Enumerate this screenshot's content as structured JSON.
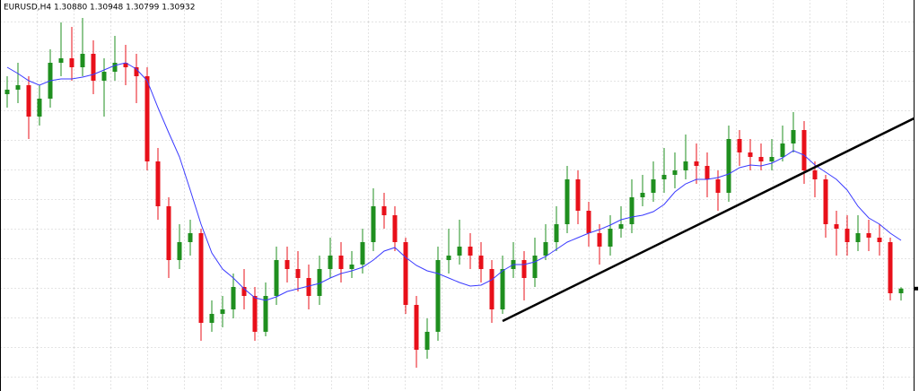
{
  "chart_data": {
    "type": "candlestick",
    "title": "EURUSD,H4  1.30880 1.30948 1.30799 1.30932",
    "ylim": [
      1.2979,
      1.3415
    ],
    "bull_color": "#1f8f1f",
    "bear_color": "#e8101a",
    "grid": true,
    "open": [
      1.331,
      1.3315,
      1.332,
      1.3285,
      1.3305,
      1.3345,
      1.335,
      1.334,
      1.3355,
      1.3325,
      1.3335,
      1.3345,
      1.334,
      1.333,
      1.3235,
      1.3185,
      1.3125,
      1.3145,
      1.3155,
      1.3055,
      1.3065,
      1.307,
      1.3095,
      1.3085,
      1.3045,
      1.3085,
      1.3125,
      1.3115,
      1.3105,
      1.3085,
      1.3115,
      1.313,
      1.3115,
      1.312,
      1.3145,
      1.3185,
      1.3175,
      1.3145,
      1.3075,
      1.3025,
      1.3045,
      1.3125,
      1.313,
      1.314,
      1.313,
      1.3115,
      1.307,
      1.3115,
      1.3125,
      1.3105,
      1.313,
      1.3145,
      1.3165,
      1.3215,
      1.318,
      1.3155,
      1.314,
      1.316,
      1.3165,
      1.3195,
      1.32,
      1.3215,
      1.322,
      1.3225,
      1.3235,
      1.323,
      1.3215,
      1.32,
      1.326,
      1.3245,
      1.324,
      1.3235,
      1.324,
      1.3255,
      1.327,
      1.3225,
      1.3215,
      1.3165,
      1.316,
      1.3145,
      1.3155,
      1.315,
      1.3145,
      1.3088
    ],
    "high": [
      1.333,
      1.3345,
      1.333,
      1.332,
      1.336,
      1.339,
      1.3385,
      1.3395,
      1.337,
      1.335,
      1.3375,
      1.3365,
      1.3355,
      1.334,
      1.325,
      1.3195,
      1.3165,
      1.317,
      1.316,
      1.308,
      1.3085,
      1.311,
      1.3115,
      1.3095,
      1.31,
      1.314,
      1.314,
      1.3135,
      1.312,
      1.313,
      1.315,
      1.3145,
      1.3135,
      1.316,
      1.3205,
      1.32,
      1.3185,
      1.315,
      1.3085,
      1.306,
      1.314,
      1.316,
      1.317,
      1.3155,
      1.3145,
      1.3125,
      1.313,
      1.3145,
      1.3135,
      1.315,
      1.3165,
      1.3185,
      1.323,
      1.3225,
      1.319,
      1.3165,
      1.3175,
      1.3185,
      1.3215,
      1.322,
      1.3235,
      1.325,
      1.3245,
      1.3265,
      1.3255,
      1.3245,
      1.3225,
      1.3275,
      1.327,
      1.326,
      1.3255,
      1.326,
      1.3275,
      1.329,
      1.328,
      1.3235,
      1.322,
      1.318,
      1.3175,
      1.3175,
      1.317,
      1.3165,
      1.315,
      1.30948
    ],
    "low": [
      1.3295,
      1.33,
      1.326,
      1.3275,
      1.3295,
      1.333,
      1.3325,
      1.333,
      1.331,
      1.3285,
      1.3325,
      1.332,
      1.33,
      1.3225,
      1.317,
      1.3105,
      1.3115,
      1.313,
      1.3035,
      1.3045,
      1.305,
      1.306,
      1.307,
      1.3035,
      1.304,
      1.3075,
      1.31,
      1.309,
      1.307,
      1.3075,
      1.3105,
      1.31,
      1.3105,
      1.311,
      1.3135,
      1.316,
      1.3135,
      1.3065,
      1.3005,
      1.3015,
      1.3035,
      1.311,
      1.312,
      1.3115,
      1.31,
      1.3055,
      1.3065,
      1.3105,
      1.308,
      1.3095,
      1.3125,
      1.3135,
      1.3155,
      1.3165,
      1.314,
      1.312,
      1.313,
      1.315,
      1.3155,
      1.3185,
      1.319,
      1.32,
      1.3205,
      1.3215,
      1.321,
      1.3195,
      1.318,
      1.319,
      1.323,
      1.3225,
      1.3225,
      1.3225,
      1.3235,
      1.3245,
      1.321,
      1.3195,
      1.315,
      1.313,
      1.313,
      1.3135,
      1.3135,
      1.313,
      1.308,
      1.30799
    ],
    "close": [
      1.3315,
      1.332,
      1.3285,
      1.3305,
      1.3345,
      1.335,
      1.334,
      1.3355,
      1.3325,
      1.3335,
      1.3345,
      1.334,
      1.333,
      1.3235,
      1.3185,
      1.3125,
      1.3145,
      1.3155,
      1.3055,
      1.3065,
      1.307,
      1.3095,
      1.3085,
      1.3045,
      1.3085,
      1.3125,
      1.3115,
      1.3105,
      1.3085,
      1.3115,
      1.313,
      1.3115,
      1.312,
      1.3145,
      1.3185,
      1.3175,
      1.3145,
      1.3075,
      1.3025,
      1.3045,
      1.3125,
      1.313,
      1.314,
      1.313,
      1.3115,
      1.307,
      1.3115,
      1.3125,
      1.3105,
      1.313,
      1.3145,
      1.3165,
      1.3215,
      1.318,
      1.3155,
      1.314,
      1.316,
      1.3165,
      1.3195,
      1.32,
      1.3215,
      1.322,
      1.3225,
      1.3235,
      1.323,
      1.3215,
      1.32,
      1.326,
      1.3245,
      1.324,
      1.3235,
      1.324,
      1.3255,
      1.327,
      1.3225,
      1.3215,
      1.3165,
      1.316,
      1.3145,
      1.3155,
      1.315,
      1.3145,
      1.3088,
      1.30932
    ],
    "moving_average": {
      "color": "#3a3aff",
      "values": [
        1.334,
        1.3333,
        1.3325,
        1.332,
        1.3325,
        1.3327,
        1.3327,
        1.3329,
        1.3332,
        1.3337,
        1.3342,
        1.3345,
        1.3338,
        1.3325,
        1.3295,
        1.3267,
        1.324,
        1.3203,
        1.3165,
        1.3133,
        1.3115,
        1.3105,
        1.3093,
        1.3083,
        1.308,
        1.3084,
        1.309,
        1.3093,
        1.3096,
        1.3099,
        1.3105,
        1.311,
        1.3113,
        1.3117,
        1.3125,
        1.3135,
        1.3139,
        1.3128,
        1.3119,
        1.3113,
        1.311,
        1.3105,
        1.31,
        1.3096,
        1.3097,
        1.3103,
        1.3113,
        1.312,
        1.312,
        1.3123,
        1.3129,
        1.3137,
        1.3145,
        1.315,
        1.3155,
        1.3159,
        1.3164,
        1.317,
        1.3173,
        1.3175,
        1.3179,
        1.3187,
        1.3201,
        1.321,
        1.3215,
        1.3215,
        1.3217,
        1.3221,
        1.3228,
        1.3231,
        1.323,
        1.3233,
        1.3239,
        1.3247,
        1.3242,
        1.3231,
        1.3223,
        1.3215,
        1.3203,
        1.3185,
        1.3172,
        1.3165,
        1.3155,
        1.3147
      ]
    },
    "trendline": {
      "color": "#000000",
      "x": [
        46,
        84.2
      ],
      "values": [
        1.3057,
        1.3283
      ]
    }
  }
}
